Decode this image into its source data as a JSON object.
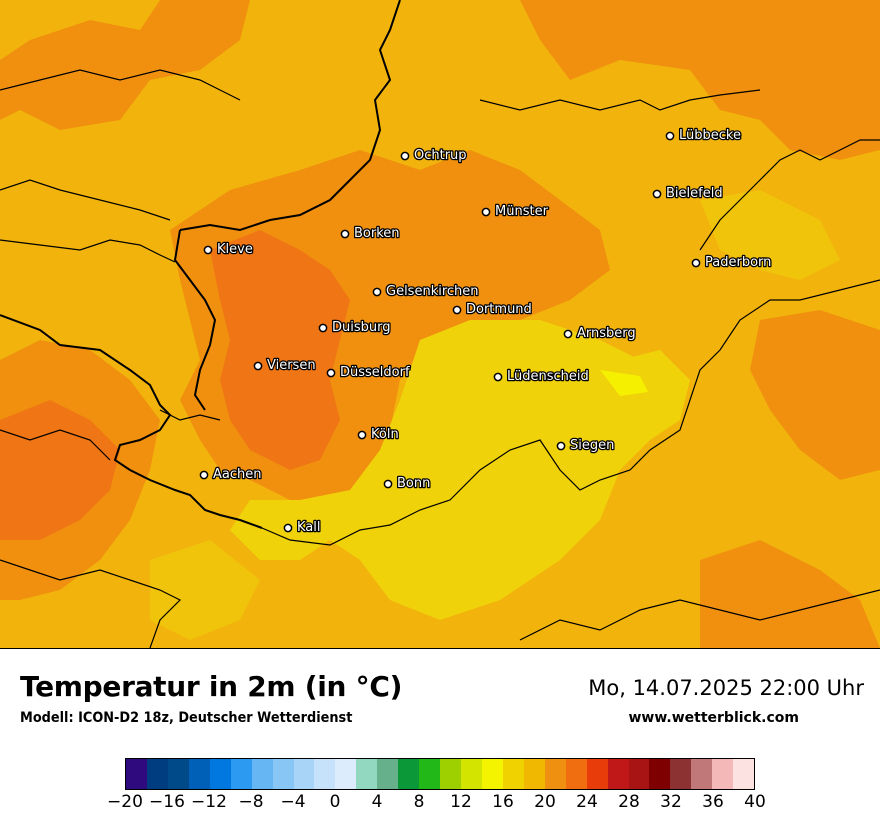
{
  "map": {
    "cities": [
      {
        "name": "Lübbecke"
      },
      {
        "name": "Ochtrup"
      },
      {
        "name": "Bielefeld"
      },
      {
        "name": "Münster"
      },
      {
        "name": "Borken"
      },
      {
        "name": "Kleve"
      },
      {
        "name": "Paderborn"
      },
      {
        "name": "Gelsenkirchen"
      },
      {
        "name": "Dortmund"
      },
      {
        "name": "Duisburg"
      },
      {
        "name": "Arnsberg"
      },
      {
        "name": "Viersen"
      },
      {
        "name": "Düsseldorf"
      },
      {
        "name": "Lüdenscheid"
      },
      {
        "name": "Köln"
      },
      {
        "name": "Siegen"
      },
      {
        "name": "Aachen"
      },
      {
        "name": "Bonn"
      },
      {
        "name": "Kall"
      }
    ]
  },
  "header": {
    "title": "Temperatur in 2m (in °C)",
    "model": "Modell: ICON-D2 18z, Deutscher Wetterdienst",
    "datetime": "Mo, 14.07.2025 22:00 Uhr",
    "website": "www.wetterblick.com"
  },
  "legend": {
    "colors": [
      "#2e0a7e",
      "#003c80",
      "#004a8a",
      "#0060b8",
      "#0078e0",
      "#2b9af0",
      "#66b6f4",
      "#88c6f6",
      "#a8d4f8",
      "#c6e2fa",
      "#dcecfc",
      "#92d8c0",
      "#66b08c",
      "#0a9838",
      "#22b818",
      "#9ed000",
      "#d2e400",
      "#f4f400",
      "#f0d200",
      "#f0b800",
      "#f09010",
      "#f06e10",
      "#e83c0a",
      "#c01818",
      "#a81414",
      "#7e0000",
      "#8c3232",
      "#c07878",
      "#f4b8b8",
      "#fde2e2"
    ],
    "ticks": [
      "−20",
      "−16",
      "−12",
      "−8",
      "−4",
      "0",
      "4",
      "8",
      "12",
      "16",
      "20",
      "24",
      "28",
      "32",
      "36",
      "40"
    ]
  }
}
